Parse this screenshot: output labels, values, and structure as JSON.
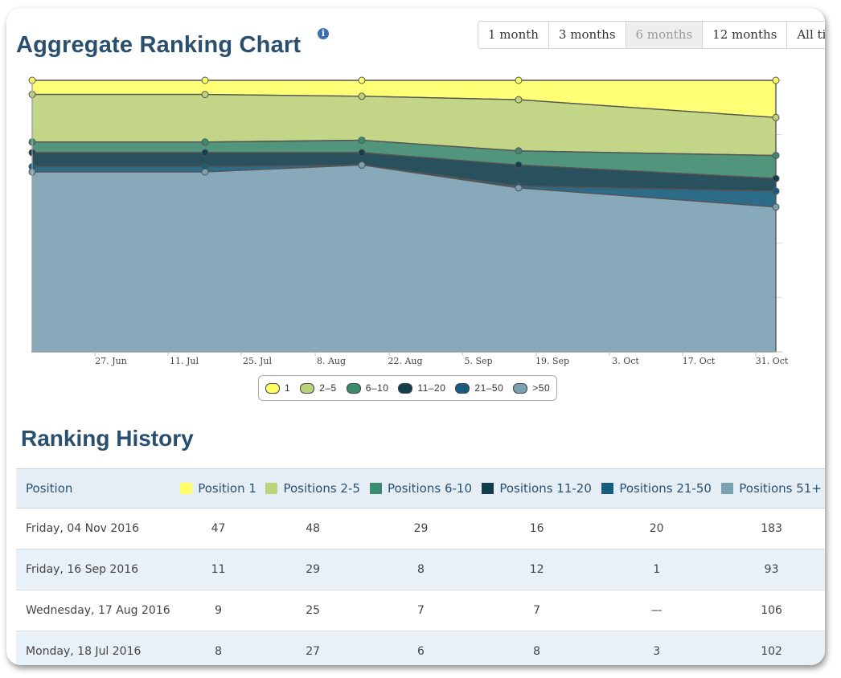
{
  "title": "Aggregate Ranking Chart",
  "info_icon": "i",
  "range_buttons": [
    "1 month",
    "3 months",
    "6 months",
    "12 months",
    "All time"
  ],
  "active_range": "6 months",
  "legend": [
    {
      "label": "1",
      "color": "#ffff66"
    },
    {
      "label": "2–5",
      "color": "#bdd07a"
    },
    {
      "label": "6–10",
      "color": "#3d8a6e"
    },
    {
      "label": "11–20",
      "color": "#123e4b"
    },
    {
      "label": "21–50",
      "color": "#165c7c"
    },
    {
      "label": ">50",
      "color": "#7aa0b2"
    }
  ],
  "chart_data": {
    "type": "area",
    "stacking": "percent",
    "x": [
      "18 Jul 2016",
      "17 Aug 2016",
      "16 Sep 2016",
      "4 Nov 2016"
    ],
    "x_tick_labels": [
      "27. Jun",
      "11. Jul",
      "25. Jul",
      "8. Aug",
      "22. Aug",
      "5. Sep",
      "19. Sep",
      "3. Oct",
      "17. Oct",
      "31. Oct"
    ],
    "series": [
      {
        "name": "1",
        "color": "#ffff66",
        "values": [
          8,
          9,
          11,
          47
        ]
      },
      {
        "name": "2–5",
        "color": "#bdd07a",
        "values": [
          27,
          25,
          29,
          48
        ]
      },
      {
        "name": "6–10",
        "color": "#3d8a6e",
        "values": [
          6,
          7,
          8,
          29
        ]
      },
      {
        "name": "11–20",
        "color": "#123e4b",
        "values": [
          8,
          7,
          12,
          16
        ]
      },
      {
        "name": "21–50",
        "color": "#165c7c",
        "values": [
          3,
          0,
          1,
          20
        ]
      },
      {
        "name": ">50",
        "color": "#7aa0b2",
        "values": [
          102,
          106,
          93,
          183
        ]
      }
    ],
    "legend_position": "bottom",
    "grid": true
  },
  "history": {
    "title": "Ranking History",
    "columns": [
      {
        "label": "Position",
        "color": ""
      },
      {
        "label": "Position 1",
        "color": "#ffff66"
      },
      {
        "label": "Positions 2-5",
        "color": "#bdd07a"
      },
      {
        "label": "Positions 6-10",
        "color": "#3d8a6e"
      },
      {
        "label": "Positions 11-20",
        "color": "#123e4b"
      },
      {
        "label": "Positions 21-50",
        "color": "#165c7c"
      },
      {
        "label": "Positions 51+",
        "color": "#7aa0b2"
      }
    ],
    "rows": [
      [
        "Friday, 04 Nov 2016",
        "47",
        "48",
        "29",
        "16",
        "20",
        "183"
      ],
      [
        "Friday, 16 Sep 2016",
        "11",
        "29",
        "8",
        "12",
        "1",
        "93"
      ],
      [
        "Wednesday, 17 Aug 2016",
        "9",
        "25",
        "7",
        "7",
        "—",
        "106"
      ],
      [
        "Monday, 18 Jul 2016",
        "8",
        "27",
        "6",
        "8",
        "3",
        "102"
      ]
    ]
  }
}
